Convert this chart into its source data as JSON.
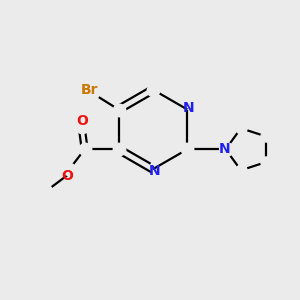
{
  "bg_color": "#ebebeb",
  "atom_colors": {
    "C": "#000000",
    "N": "#2020ee",
    "O": "#ee1111",
    "Br": "#cc7700",
    "H": "#000000"
  },
  "bond_color": "#000000",
  "bond_width": 1.6,
  "figsize": [
    3.0,
    3.0
  ],
  "dpi": 100,
  "xlim": [
    0,
    10
  ],
  "ylim": [
    0,
    10
  ]
}
